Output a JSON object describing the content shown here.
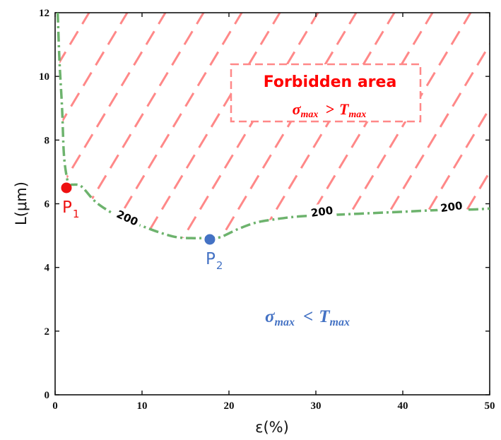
{
  "chart_data": {
    "type": "line",
    "xlabel": "ε(%)",
    "ylabel": "L(μm)",
    "xlim": [
      0,
      50
    ],
    "ylim": [
      0,
      12
    ],
    "x_ticks": [
      "0",
      "10",
      "20",
      "30",
      "40",
      "50"
    ],
    "y_ticks": [
      "0",
      "2",
      "4",
      "6",
      "8",
      "10",
      "12"
    ],
    "grid": false,
    "series": [
      {
        "label_text": "200",
        "color": "#6db36d",
        "x": [
          0.3,
          0.5,
          0.8,
          1.0,
          1.3,
          1.6,
          2.0,
          3.0,
          4.5,
          6.0,
          8.0,
          10.0,
          12.0,
          14.0,
          16.0,
          17.8,
          19.0,
          21.0,
          23.0,
          25.0,
          28.0,
          32.0,
          36.0,
          40.0,
          44.0,
          48.0,
          50.0
        ],
        "y": [
          12.0,
          10.5,
          9.0,
          7.6,
          6.9,
          6.6,
          6.6,
          6.55,
          6.1,
          5.8,
          5.5,
          5.3,
          5.1,
          4.95,
          4.92,
          4.93,
          4.95,
          5.2,
          5.4,
          5.5,
          5.6,
          5.65,
          5.7,
          5.75,
          5.8,
          5.82,
          5.85
        ]
      }
    ],
    "contour_labels": [
      {
        "text": "200",
        "x": 8.3,
        "y": 5.55
      },
      {
        "text": "200",
        "x": 30.7,
        "y": 5.75
      },
      {
        "text": "200",
        "x": 45.6,
        "y": 5.9
      }
    ],
    "points": [
      {
        "name": "P",
        "sub": "1",
        "x": 1.3,
        "y": 6.5,
        "color": "#ee1111"
      },
      {
        "name": "P",
        "sub": "2",
        "x": 17.8,
        "y": 4.88,
        "color": "#4472c4"
      }
    ],
    "forbidden": {
      "title": "Forbidden area",
      "condition": {
        "lhs": "σ",
        "lhs_sub": "max",
        "op": ">",
        "rhs": "T",
        "rhs_sub": "max"
      },
      "hatch_color": "#ff8888"
    },
    "allowed": {
      "condition": {
        "lhs": "σ",
        "lhs_sub": "max",
        "op": "<",
        "rhs": "T",
        "rhs_sub": "max"
      },
      "color": "#4472c4"
    }
  }
}
